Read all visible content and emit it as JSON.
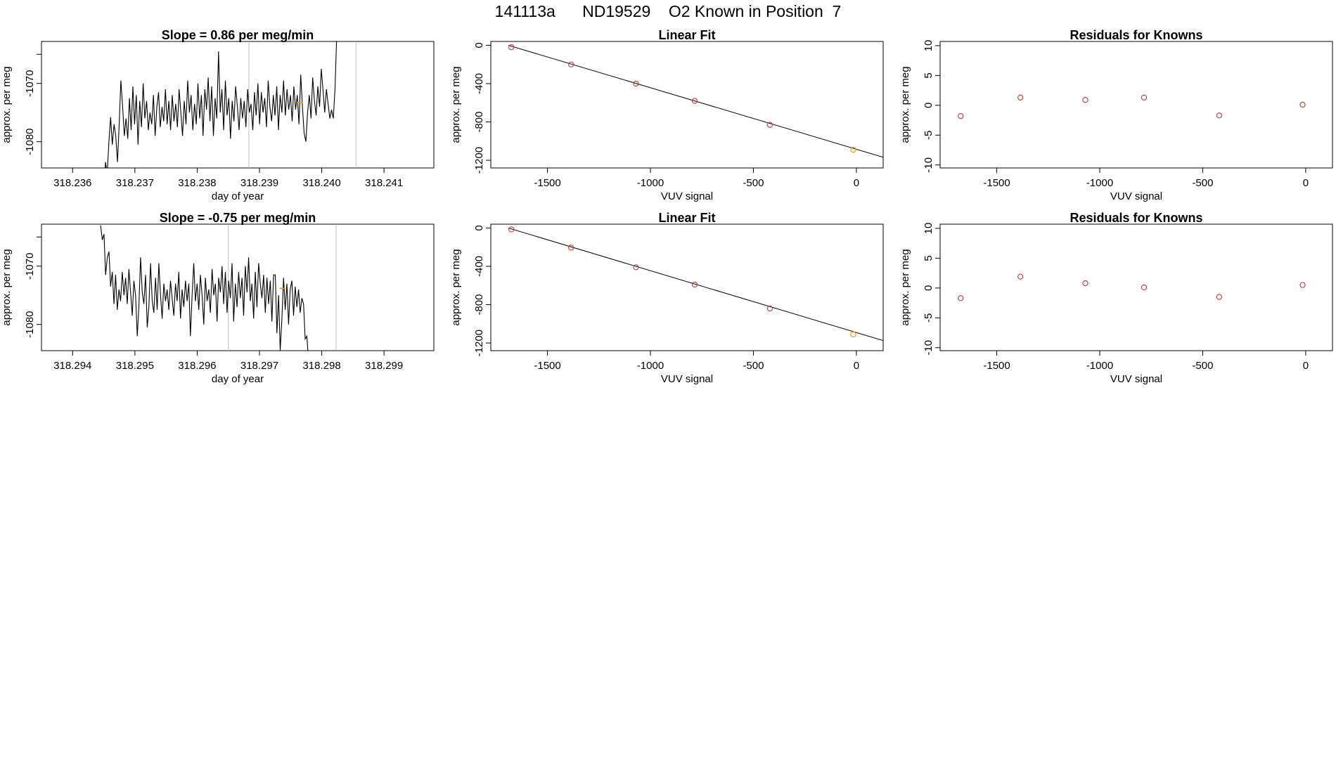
{
  "title": "141113a      ND19529    O2 Known in Position  7",
  "colors": {
    "axis": "#000000",
    "line": "#000000",
    "vline": "#bebebe",
    "point": "#cd3333",
    "highlight": "#ff8c00"
  },
  "chart_data": [
    {
      "id": "ts-1",
      "type": "line",
      "title": "Slope =  0.86  per meg/min",
      "xlabel": "day of year",
      "ylabel": "approx. per meg",
      "xlim": [
        318.2355,
        318.2418
      ],
      "ylim": [
        -1084.5,
        -1062.8
      ],
      "xticks": [
        318.236,
        318.237,
        318.238,
        318.239,
        318.24,
        318.241
      ],
      "xtick_labels": [
        "318.236",
        "318.237",
        "318.238",
        "318.239",
        "318.240",
        "318.241"
      ],
      "yticks": [
        -1070,
        -1080
      ],
      "ytick_labels": [
        "-1070",
        "-1080"
      ],
      "vlines": [
        318.23883,
        318.24055
      ],
      "highlight": {
        "x": 318.23965,
        "y": -1073.3
      },
      "x_start": 318.2365,
      "x_step": 2.75e-05,
      "y": [
        -1090,
        -1083.5,
        -1085.5,
        -1080,
        -1075.8,
        -1080.5,
        -1077,
        -1079,
        -1083.5,
        -1077,
        -1069.5,
        -1074,
        -1079,
        -1076,
        -1079.5,
        -1072.5,
        -1078,
        -1070.5,
        -1077,
        -1072,
        -1080.5,
        -1073,
        -1077.5,
        -1070,
        -1076,
        -1073,
        -1078,
        -1075,
        -1077,
        -1072,
        -1079,
        -1074,
        -1071.5,
        -1077.5,
        -1074,
        -1076.5,
        -1071,
        -1077,
        -1073,
        -1078,
        -1072,
        -1076.5,
        -1073.5,
        -1077.5,
        -1071,
        -1075,
        -1079,
        -1073,
        -1077,
        -1069.5,
        -1075,
        -1072,
        -1078,
        -1073.5,
        -1077,
        -1070,
        -1076,
        -1072,
        -1079,
        -1071,
        -1074.5,
        -1069,
        -1076.5,
        -1070.5,
        -1079,
        -1072.5,
        -1076,
        -1064.5,
        -1075,
        -1071,
        -1078,
        -1069.5,
        -1075.5,
        -1072.5,
        -1079.5,
        -1073,
        -1076.5,
        -1070.5,
        -1074,
        -1078,
        -1072.5,
        -1076,
        -1073,
        -1077.5,
        -1071,
        -1075,
        -1073.5,
        -1078,
        -1071.5,
        -1075.5,
        -1070,
        -1077,
        -1071.5,
        -1075,
        -1072.5,
        -1077.5,
        -1069.5,
        -1074,
        -1076.5,
        -1072,
        -1075.5,
        -1070.5,
        -1078,
        -1072,
        -1075,
        -1069.5,
        -1075.5,
        -1071,
        -1074.5,
        -1072,
        -1076.5,
        -1070.5,
        -1074.5,
        -1072,
        -1077,
        -1068.5,
        -1074,
        -1078.5,
        -1080,
        -1075,
        -1072,
        -1076,
        -1069,
        -1073,
        -1075.5,
        -1070.5,
        -1074,
        -1067.5,
        -1071,
        -1075,
        -1071,
        -1073.5,
        -1076,
        -1074.5,
        -1076,
        -1071,
        -1062
      ]
    },
    {
      "id": "fit-1",
      "type": "scatter",
      "title": "Linear Fit",
      "xlabel": "VUV signal",
      "ylabel": "approx. per meg",
      "xlim": [
        -1775,
        130
      ],
      "ylim": [
        -1280,
        40
      ],
      "xticks": [
        -1500,
        -1000,
        -500,
        0
      ],
      "xtick_labels": [
        "-1500",
        "-1000",
        "-500",
        "0"
      ],
      "yticks": [
        0,
        -400,
        -800,
        -1200
      ],
      "ytick_labels": [
        "0",
        "-400",
        "-800",
        "-1200"
      ],
      "x": [
        -1675,
        -1385,
        -1070,
        -785,
        -420,
        -15
      ],
      "y": [
        -20,
        -200,
        -400,
        -580,
        -830,
        -1090
      ],
      "highlight_index": 5,
      "fit_line": {
        "x": [
          -1690,
          130
        ],
        "y": [
          0,
          -1168
        ]
      }
    },
    {
      "id": "res-1",
      "type": "scatter",
      "title": "Residuals for Knowns",
      "xlabel": "VUV signal",
      "ylabel": "approx. per meg",
      "xlim": [
        -1775,
        130
      ],
      "ylim": [
        -10.5,
        10.7
      ],
      "xticks": [
        -1500,
        -1000,
        -500,
        0
      ],
      "xtick_labels": [
        "-1500",
        "-1000",
        "-500",
        "0"
      ],
      "yticks": [
        10,
        5,
        0,
        -5,
        -10
      ],
      "ytick_labels": [
        "10",
        "5",
        "0",
        "-5",
        "-10"
      ],
      "x": [
        -1675,
        -1385,
        -1070,
        -785,
        -420,
        -15
      ],
      "y": [
        -1.8,
        1.3,
        0.9,
        1.3,
        -1.7,
        0.1
      ]
    },
    {
      "id": "ts-2",
      "type": "line",
      "title": "Slope =  -0.75  per meg/min",
      "xlabel": "day of year",
      "ylabel": "approx. per meg",
      "xlim": [
        318.2935,
        318.2998
      ],
      "ylim": [
        -1084.5,
        -1062.8
      ],
      "xticks": [
        318.294,
        318.295,
        318.296,
        318.297,
        318.298,
        318.299
      ],
      "xtick_labels": [
        "318.294",
        "318.295",
        "318.296",
        "318.297",
        "318.298",
        "318.299"
      ],
      "yticks": [
        -1070,
        -1080
      ],
      "ytick_labels": [
        "-1070",
        "-1080"
      ],
      "vlines": [
        318.2965,
        318.29823
      ],
      "highlight": {
        "x": 318.29737,
        "y": -1073.8
      },
      "x_start": 318.29445,
      "x_step": 2.67e-05,
      "y": [
        -1063,
        -1065.5,
        -1064.5,
        -1071.5,
        -1068.5,
        -1067.5,
        -1073.5,
        -1071,
        -1076.5,
        -1071.5,
        -1077.5,
        -1074,
        -1076,
        -1071,
        -1075,
        -1072,
        -1076.5,
        -1070.5,
        -1074.5,
        -1078.5,
        -1072.5,
        -1075,
        -1082,
        -1077,
        -1068.5,
        -1074.5,
        -1076.5,
        -1071.5,
        -1080.5,
        -1077,
        -1069.5,
        -1076,
        -1078,
        -1072,
        -1077.5,
        -1069.5,
        -1075,
        -1079,
        -1073,
        -1076,
        -1074,
        -1077.5,
        -1072.5,
        -1075.5,
        -1078.5,
        -1073,
        -1076,
        -1071,
        -1079,
        -1074,
        -1077,
        -1072.5,
        -1076,
        -1073,
        -1082,
        -1075,
        -1069.5,
        -1076,
        -1073,
        -1077.5,
        -1071.5,
        -1075,
        -1080,
        -1072,
        -1076,
        -1074,
        -1078,
        -1070.5,
        -1075,
        -1073,
        -1079.5,
        -1072,
        -1074.5,
        -1070,
        -1076.5,
        -1071,
        -1078,
        -1072.5,
        -1075.5,
        -1069.5,
        -1079.5,
        -1073,
        -1077,
        -1071,
        -1075.5,
        -1072,
        -1078.5,
        -1070,
        -1074.5,
        -1068.5,
        -1076,
        -1073,
        -1079,
        -1071,
        -1077,
        -1069.5,
        -1073,
        -1075.5,
        -1071.5,
        -1078,
        -1072,
        -1076.5,
        -1072.5,
        -1079.5,
        -1071.5,
        -1071.5,
        -1081.5,
        -1075,
        -1084.5,
        -1079,
        -1072,
        -1077.5,
        -1073,
        -1080,
        -1074,
        -1072.5,
        -1078.5,
        -1073.5,
        -1077,
        -1074,
        -1078,
        -1075.5,
        -1076.5,
        -1082.5,
        -1082,
        -1086
      ]
    },
    {
      "id": "fit-2",
      "type": "scatter",
      "title": "Linear Fit",
      "xlabel": "VUV signal",
      "ylabel": "approx. per meg",
      "xlim": [
        -1775,
        130
      ],
      "ylim": [
        -1280,
        40
      ],
      "xticks": [
        -1500,
        -1000,
        -500,
        0
      ],
      "xtick_labels": [
        "-1500",
        "-1000",
        "-500",
        "0"
      ],
      "yticks": [
        0,
        -400,
        -800,
        -1200
      ],
      "ytick_labels": [
        "0",
        "-400",
        "-800",
        "-1200"
      ],
      "x": [
        -1675,
        -1385,
        -1070,
        -785,
        -420,
        -15
      ],
      "y": [
        -15,
        -205,
        -410,
        -590,
        -840,
        -1110
      ],
      "highlight_index": 5,
      "fit_line": {
        "x": [
          -1690,
          130
        ],
        "y": [
          0,
          -1175
        ]
      }
    },
    {
      "id": "res-2",
      "type": "scatter",
      "title": "Residuals for Knowns",
      "xlabel": "VUV signal",
      "ylabel": "approx. per meg",
      "xlim": [
        -1775,
        130
      ],
      "ylim": [
        -10.5,
        10.7
      ],
      "xticks": [
        -1500,
        -1000,
        -500,
        0
      ],
      "xtick_labels": [
        "-1500",
        "-1000",
        "-500",
        "0"
      ],
      "yticks": [
        10,
        5,
        0,
        -5,
        -10
      ],
      "ytick_labels": [
        "10",
        "5",
        "0",
        "-5",
        "-10"
      ],
      "x": [
        -1675,
        -1385,
        -1070,
        -785,
        -420,
        -15
      ],
      "y": [
        -1.7,
        1.9,
        0.8,
        0.1,
        -1.5,
        0.5
      ]
    }
  ]
}
